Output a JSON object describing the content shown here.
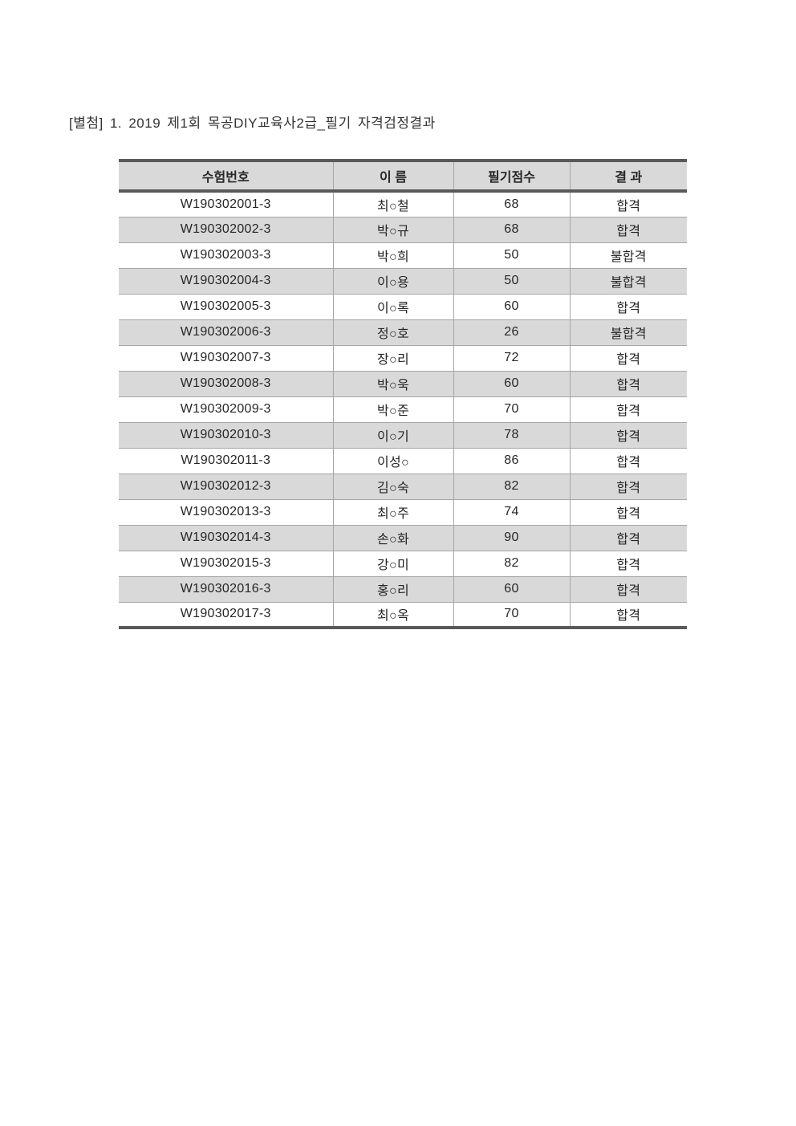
{
  "page": {
    "title": "[별첨] 1. 2019 제1회 목공DIY교육사2급_필기 자격검정결과"
  },
  "table": {
    "columns": [
      "수험번호",
      "이 름",
      "필기점수",
      "결 과"
    ],
    "rows": [
      [
        "W190302001-3",
        "최○철",
        "68",
        "합격"
      ],
      [
        "W190302002-3",
        "박○규",
        "68",
        "합격"
      ],
      [
        "W190302003-3",
        "박○희",
        "50",
        "불합격"
      ],
      [
        "W190302004-3",
        "이○용",
        "50",
        "불합격"
      ],
      [
        "W190302005-3",
        "이○록",
        "60",
        "합격"
      ],
      [
        "W190302006-3",
        "정○호",
        "26",
        "불합격"
      ],
      [
        "W190302007-3",
        "장○리",
        "72",
        "합격"
      ],
      [
        "W190302008-3",
        "박○욱",
        "60",
        "합격"
      ],
      [
        "W190302009-3",
        "박○준",
        "70",
        "합격"
      ],
      [
        "W190302010-3",
        "이○기",
        "78",
        "합격"
      ],
      [
        "W190302011-3",
        "이성○",
        "86",
        "합격"
      ],
      [
        "W190302012-3",
        "김○숙",
        "82",
        "합격"
      ],
      [
        "W190302013-3",
        "최○주",
        "74",
        "합격"
      ],
      [
        "W190302014-3",
        "손○화",
        "90",
        "합격"
      ],
      [
        "W190302015-3",
        "강○미",
        "82",
        "합격"
      ],
      [
        "W190302016-3",
        "홍○리",
        "60",
        "합격"
      ],
      [
        "W190302017-3",
        "최○옥",
        "70",
        "합격"
      ]
    ]
  },
  "colors": {
    "header_bg": "#d9d9d9",
    "row_alt_bg": "#d9d9d9",
    "border_dark": "#595959",
    "border_light": "#a6a6a6",
    "text": "#262626"
  }
}
